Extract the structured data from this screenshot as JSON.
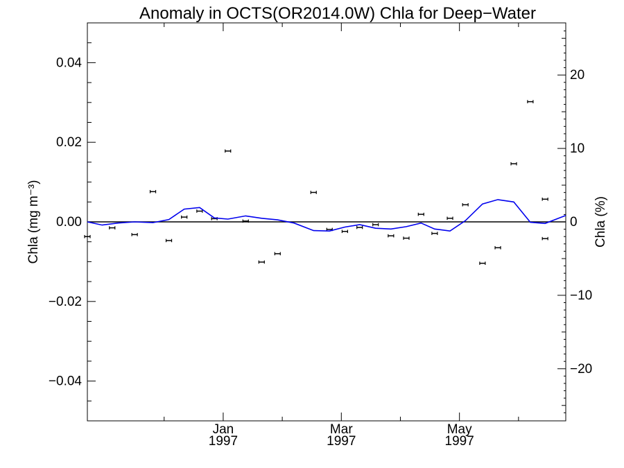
{
  "chart_data": {
    "type": "scatter",
    "title": "Anomaly in OCTS(OR2014.0W) Chla for Deep−Water",
    "ylabel_left": "Chla (mg m⁻³)",
    "ylabel_right": "Chla (%)",
    "ylim_left": [
      -0.05,
      0.05
    ],
    "ylim_right": [
      -27.1,
      27.1
    ],
    "xlim": [
      -2.3,
      5.8
    ],
    "left_ticks": [
      {
        "value": 0.04,
        "label": "0.04"
      },
      {
        "value": 0.02,
        "label": "0.02"
      },
      {
        "value": 0.0,
        "label": "0.00"
      },
      {
        "value": -0.02,
        "label": "−0.02"
      },
      {
        "value": -0.04,
        "label": "−0.04"
      }
    ],
    "right_ticks": [
      {
        "value": 20,
        "label": "20"
      },
      {
        "value": 10,
        "label": "10"
      },
      {
        "value": 0,
        "label": "0"
      },
      {
        "value": -10,
        "label": "−10"
      },
      {
        "value": -20,
        "label": "−20"
      }
    ],
    "x_ticks": [
      {
        "value": 0.0,
        "label": [
          "Jan",
          "1997"
        ]
      },
      {
        "value": 2.0,
        "label": [
          "Mar",
          "1997"
        ]
      },
      {
        "value": 4.0,
        "label": [
          "May",
          "1997"
        ]
      }
    ],
    "x_minor_ticks": [
      -1.0,
      1.0,
      3.0,
      5.0
    ],
    "zero_line_color": "#000000",
    "series": [
      {
        "kind": "points_with_error_bars",
        "color": "#000000",
        "x": [
          -2.3,
          -1.88,
          -1.5,
          -1.19,
          -0.92,
          -0.66,
          -0.4,
          -0.15,
          0.08,
          0.38,
          0.65,
          0.92,
          1.53,
          1.8,
          2.06,
          2.31,
          2.58,
          2.84,
          3.1,
          3.35,
          3.58,
          3.84,
          4.1,
          4.39,
          4.65,
          4.92,
          5.2,
          5.45
        ],
        "values": [
          -0.0037,
          -0.0015,
          -0.0032,
          0.0076,
          -0.0047,
          0.0012,
          0.0027,
          0.0008,
          0.0178,
          0.0002,
          -0.0101,
          -0.008,
          0.0074,
          -0.0019,
          -0.0024,
          -0.0014,
          -0.0007,
          -0.0035,
          -0.0041,
          0.0019,
          -0.0029,
          0.0009,
          0.0043,
          -0.0104,
          -0.0065,
          0.0146,
          0.0302,
          0.0057
        ],
        "extra_x": [
          5.45
        ],
        "extra_values": [
          -0.0042
        ],
        "error": 0.0004
      },
      {
        "kind": "line",
        "color": "#0000ee",
        "x": [
          -2.3,
          -2.05,
          -1.78,
          -1.5,
          -1.19,
          -0.92,
          -0.66,
          -0.4,
          -0.15,
          0.08,
          0.38,
          0.65,
          0.92,
          1.2,
          1.53,
          1.8,
          2.06,
          2.31,
          2.58,
          2.84,
          3.1,
          3.35,
          3.58,
          3.84,
          4.1,
          4.39,
          4.65,
          4.92,
          5.2,
          5.45,
          5.8
        ],
        "values": [
          0.0,
          -0.0008,
          -0.0003,
          0.0,
          -0.0002,
          0.0006,
          0.0032,
          0.0036,
          0.001,
          0.0007,
          0.0015,
          0.0009,
          0.0005,
          -0.0003,
          -0.0022,
          -0.0023,
          -0.0013,
          -0.0007,
          -0.0016,
          -0.0018,
          -0.0012,
          -0.0003,
          -0.0018,
          -0.0023,
          0.0003,
          0.0045,
          0.0056,
          0.005,
          -0.0001,
          -0.0004,
          0.0016
        ]
      }
    ]
  }
}
